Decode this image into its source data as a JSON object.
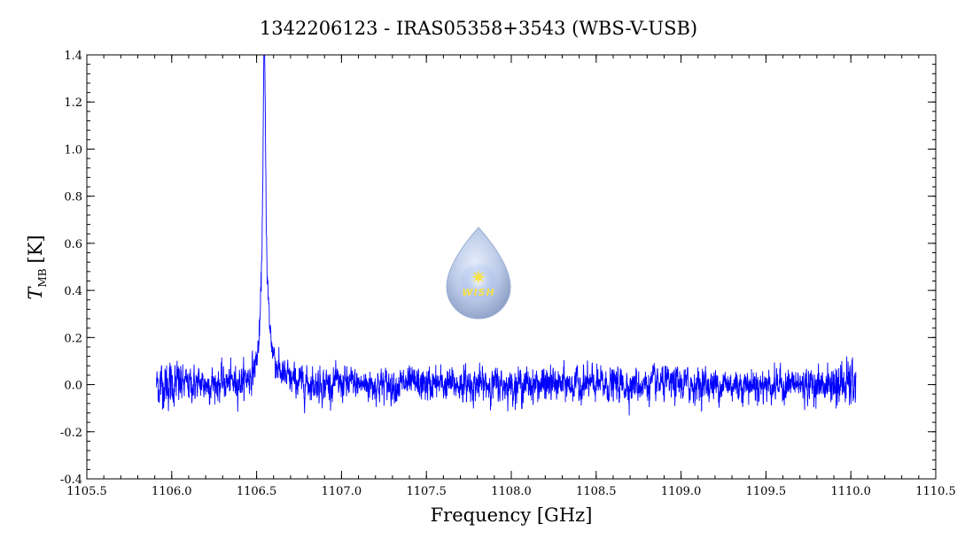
{
  "chart_data": {
    "type": "line",
    "title": "1342206123 - IRAS05358+3543 (WBS-V-USB)",
    "xlabel": "Frequency [GHz]",
    "ylabel_main": "T",
    "ylabel_sub": "MB",
    "ylabel_unit": "[K]",
    "xlim": [
      1105.5,
      1110.5
    ],
    "ylim": [
      -0.4,
      1.4
    ],
    "x_ticks": [
      1105.5,
      1106.0,
      1106.5,
      1107.0,
      1107.5,
      1108.0,
      1108.5,
      1109.0,
      1109.5,
      1110.0,
      1110.5
    ],
    "x_tick_labels": [
      "1105.5",
      "1106.0",
      "1106.5",
      "1107.0",
      "1107.5",
      "1108.0",
      "1108.5",
      "1109.0",
      "1109.5",
      "1110.0",
      "1110.5"
    ],
    "y_ticks": [
      -0.4,
      -0.2,
      0.0,
      0.2,
      0.4,
      0.6,
      0.8,
      1.0,
      1.2,
      1.4
    ],
    "y_tick_labels": [
      "-0.4",
      "-0.2",
      "0.0",
      "0.2",
      "0.4",
      "0.6",
      "0.8",
      "1.0",
      "1.2",
      "1.4"
    ],
    "grid": false,
    "series": [
      {
        "color": "#0000ff",
        "x_range": [
          1105.91,
          1110.03
        ],
        "baseline": 0.0,
        "noise_rms": 0.035,
        "peaks": [
          {
            "x": 1106.545,
            "y": 1.33,
            "fwhm": 0.022
          },
          {
            "x": 1106.57,
            "y": 0.12,
            "fwhm": 0.09
          }
        ]
      }
    ]
  },
  "watermark": {
    "text": "WISH",
    "icon": "water-drop-star-icon",
    "drop_color": "#b9c8e6",
    "star_color": "#f5e14a"
  }
}
